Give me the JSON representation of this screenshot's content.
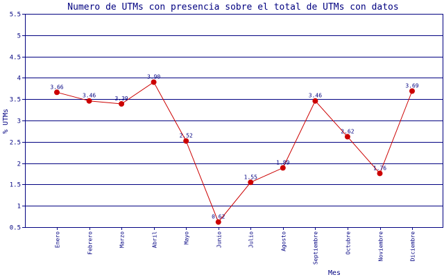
{
  "chart_data": {
    "type": "line",
    "title": "Numero de UTMs con presencia sobre el total de UTMs con datos",
    "xlabel": "Mes",
    "ylabel": "% UTMs",
    "ylim": [
      0.5,
      5.5
    ],
    "yticks": [
      "0.5",
      "1",
      "1.5",
      "2",
      "2.5",
      "3",
      "3.5",
      "4",
      "4.5",
      "5",
      "5.5"
    ],
    "grid": "horizontal",
    "categories": [
      "Enero",
      "Febrero",
      "Marzo",
      "Abril",
      "Mayo",
      "Junio",
      "Julio",
      "Agosto",
      "Septiembre",
      "Octubre",
      "Noviembre",
      "Diciembre"
    ],
    "series": [
      {
        "values": [
          3.66,
          3.46,
          3.39,
          3.9,
          2.52,
          0.62,
          1.55,
          1.89,
          3.46,
          2.62,
          1.76,
          3.69
        ],
        "labels": [
          "3.66",
          "3.46",
          "3.39",
          "3.90",
          "2.52",
          "0.62",
          "1.55",
          "1.89",
          "3.46",
          "2.62",
          "1.76",
          "3.69"
        ],
        "color": "#cc0000"
      }
    ],
    "colors": {
      "title": "#000080",
      "axis": "#000080",
      "grid": "#000080",
      "line": "#cc0000",
      "marker": "#cc0000",
      "label": "#000080"
    }
  }
}
